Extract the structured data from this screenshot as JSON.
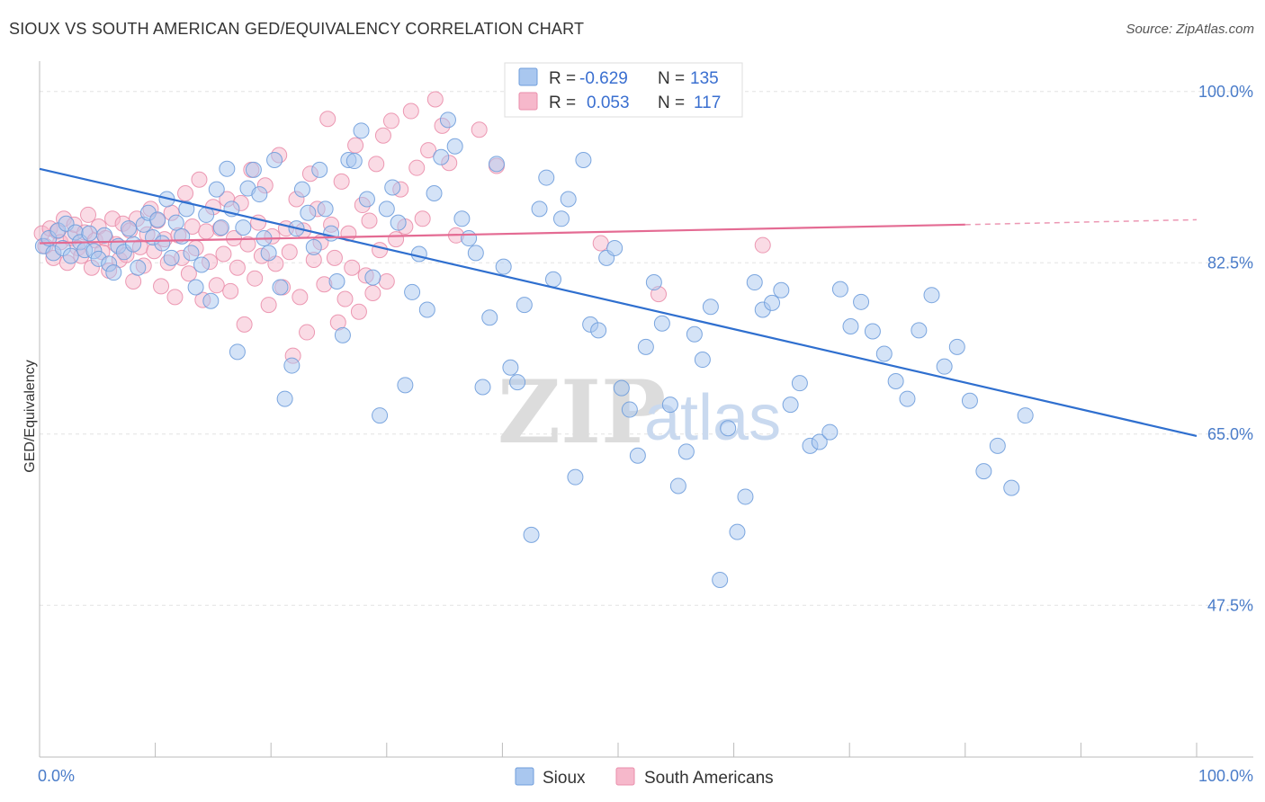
{
  "title": "SIOUX VS SOUTH AMERICAN GED/EQUIVALENCY CORRELATION CHART",
  "source": "Source: ZipAtlas.com",
  "watermark": {
    "zip": "ZIP",
    "atlas": "atlas"
  },
  "colors": {
    "sioux_fill": "#a9c7ef",
    "sioux_stroke": "#6f9ddb",
    "sioux_line": "#2f6fcf",
    "sa_fill": "#f6b8cb",
    "sa_stroke": "#ea8eab",
    "sa_line": "#e46b93",
    "axis_text": "#4a7cc9",
    "grid": "#e3e3e3"
  },
  "legend_box": {
    "rows": [
      {
        "r_label": "R =",
        "r_value": "-0.629",
        "n_label": "N =",
        "n_value": "135"
      },
      {
        "r_label": "R =",
        "r_value": "0.053",
        "n_label": "N =",
        "n_value": "117"
      }
    ]
  },
  "bottom_legend": {
    "sioux": "Sioux",
    "south_americans": "South Americans"
  },
  "chart_data": {
    "type": "scatter",
    "title": "SIOUX VS SOUTH AMERICAN GED/EQUIVALENCY CORRELATION CHART",
    "xlabel": "",
    "ylabel": "GED/Equivalency",
    "xlim": [
      0,
      100
    ],
    "ylim": [
      32,
      102
    ],
    "x_tick_labels": [
      "0.0%",
      "100.0%"
    ],
    "y_ticks": [
      100.0,
      82.5,
      65.0,
      47.5
    ],
    "y_tick_labels": [
      "100.0%",
      "82.5%",
      "65.0%",
      "47.5%"
    ],
    "grid": true,
    "legend_position": "top-center",
    "series": [
      {
        "name": "Sioux",
        "r": -0.629,
        "n": 135,
        "trend": {
          "x": [
            0,
            100
          ],
          "y": [
            92.1,
            64.8
          ],
          "dashed_from": null
        },
        "points": [
          [
            0.3,
            84.2
          ],
          [
            0.8,
            85.0
          ],
          [
            1.2,
            83.5
          ],
          [
            1.6,
            85.8
          ],
          [
            2.0,
            84.0
          ],
          [
            2.3,
            86.5
          ],
          [
            2.7,
            83.2
          ],
          [
            3.1,
            85.6
          ],
          [
            3.5,
            84.6
          ],
          [
            3.9,
            83.8
          ],
          [
            4.3,
            85.5
          ],
          [
            4.7,
            83.7
          ],
          [
            5.1,
            82.9
          ],
          [
            5.6,
            85.3
          ],
          [
            6.0,
            82.4
          ],
          [
            6.4,
            81.5
          ],
          [
            6.8,
            84.2
          ],
          [
            7.3,
            83.6
          ],
          [
            7.7,
            86.0
          ],
          [
            8.1,
            84.4
          ],
          [
            8.5,
            82.0
          ],
          [
            9.0,
            86.4
          ],
          [
            9.4,
            87.6
          ],
          [
            9.8,
            85.1
          ],
          [
            10.2,
            86.9
          ],
          [
            10.6,
            84.5
          ],
          [
            11.0,
            89.0
          ],
          [
            11.4,
            83.0
          ],
          [
            11.8,
            86.6
          ],
          [
            12.3,
            85.2
          ],
          [
            12.7,
            88.0
          ],
          [
            13.1,
            83.5
          ],
          [
            13.5,
            80.0
          ],
          [
            14.0,
            82.3
          ],
          [
            14.4,
            87.4
          ],
          [
            14.8,
            78.6
          ],
          [
            15.3,
            90.0
          ],
          [
            15.7,
            86.1
          ],
          [
            16.2,
            92.1
          ],
          [
            16.6,
            88.0
          ],
          [
            17.1,
            73.4
          ],
          [
            17.6,
            86.1
          ],
          [
            18.0,
            90.1
          ],
          [
            18.5,
            92.0
          ],
          [
            19.0,
            89.5
          ],
          [
            19.4,
            85.0
          ],
          [
            19.8,
            83.5
          ],
          [
            20.3,
            93.0
          ],
          [
            20.8,
            80.0
          ],
          [
            21.2,
            68.6
          ],
          [
            21.8,
            72.0
          ],
          [
            22.2,
            86.0
          ],
          [
            22.7,
            90.0
          ],
          [
            23.2,
            87.6
          ],
          [
            23.7,
            84.1
          ],
          [
            24.2,
            92.0
          ],
          [
            24.7,
            88.0
          ],
          [
            25.2,
            85.5
          ],
          [
            25.7,
            80.6
          ],
          [
            26.2,
            75.1
          ],
          [
            26.7,
            93.0
          ],
          [
            27.2,
            92.9
          ],
          [
            27.8,
            96.0
          ],
          [
            28.3,
            89.0
          ],
          [
            28.8,
            81.0
          ],
          [
            29.4,
            66.9
          ],
          [
            30.0,
            88.0
          ],
          [
            30.5,
            90.2
          ],
          [
            31.0,
            86.6
          ],
          [
            31.6,
            70.0
          ],
          [
            32.2,
            79.5
          ],
          [
            32.8,
            83.4
          ],
          [
            33.5,
            77.7
          ],
          [
            34.1,
            89.6
          ],
          [
            34.7,
            93.3
          ],
          [
            35.3,
            97.1
          ],
          [
            35.9,
            94.4
          ],
          [
            36.5,
            87.0
          ],
          [
            37.1,
            85.0
          ],
          [
            37.7,
            83.5
          ],
          [
            38.3,
            69.8
          ],
          [
            38.9,
            76.9
          ],
          [
            39.5,
            92.6
          ],
          [
            40.1,
            82.1
          ],
          [
            40.7,
            71.8
          ],
          [
            41.3,
            70.3
          ],
          [
            41.9,
            78.2
          ],
          [
            42.5,
            54.7
          ],
          [
            43.2,
            88.0
          ],
          [
            43.8,
            91.2
          ],
          [
            44.4,
            80.8
          ],
          [
            45.1,
            87.0
          ],
          [
            45.7,
            89.0
          ],
          [
            46.3,
            60.6
          ],
          [
            47.0,
            93.0
          ],
          [
            47.6,
            76.2
          ],
          [
            48.3,
            75.6
          ],
          [
            49.0,
            83.0
          ],
          [
            49.7,
            84.0
          ],
          [
            50.3,
            69.7
          ],
          [
            51.0,
            67.5
          ],
          [
            51.7,
            62.8
          ],
          [
            52.4,
            73.9
          ],
          [
            53.1,
            80.5
          ],
          [
            53.8,
            76.3
          ],
          [
            54.5,
            68.0
          ],
          [
            55.2,
            59.7
          ],
          [
            55.9,
            63.2
          ],
          [
            56.6,
            75.2
          ],
          [
            57.3,
            72.6
          ],
          [
            58.0,
            78.0
          ],
          [
            58.8,
            50.1
          ],
          [
            59.5,
            65.6
          ],
          [
            60.3,
            55.0
          ],
          [
            61.0,
            58.6
          ],
          [
            61.8,
            80.5
          ],
          [
            62.5,
            77.7
          ],
          [
            63.3,
            78.4
          ],
          [
            64.1,
            79.7
          ],
          [
            64.9,
            68.0
          ],
          [
            65.7,
            70.2
          ],
          [
            66.6,
            63.8
          ],
          [
            67.4,
            64.2
          ],
          [
            68.3,
            65.2
          ],
          [
            69.2,
            79.8
          ],
          [
            70.1,
            76.0
          ],
          [
            71.0,
            78.5
          ],
          [
            72.0,
            75.5
          ],
          [
            73.0,
            73.2
          ],
          [
            74.0,
            70.4
          ],
          [
            75.0,
            68.6
          ],
          [
            76.0,
            75.6
          ],
          [
            77.1,
            79.2
          ],
          [
            78.2,
            71.9
          ],
          [
            79.3,
            73.9
          ],
          [
            80.4,
            68.4
          ],
          [
            81.6,
            61.2
          ],
          [
            82.8,
            63.8
          ],
          [
            84.0,
            59.5
          ],
          [
            85.2,
            66.9
          ]
        ]
      },
      {
        "name": "South Americans",
        "r": 0.053,
        "n": 117,
        "trend": {
          "x": [
            0,
            80,
            100
          ],
          "y": [
            84.5,
            86.4,
            86.9
          ],
          "dashed_from": 80
        },
        "points": [
          [
            0.2,
            85.5
          ],
          [
            0.5,
            84.2
          ],
          [
            0.9,
            86.0
          ],
          [
            1.2,
            83.0
          ],
          [
            1.5,
            85.7
          ],
          [
            1.8,
            84.6
          ],
          [
            2.1,
            87.0
          ],
          [
            2.4,
            82.5
          ],
          [
            2.7,
            85.0
          ],
          [
            3.0,
            86.4
          ],
          [
            3.3,
            84.0
          ],
          [
            3.6,
            83.2
          ],
          [
            3.9,
            85.6
          ],
          [
            4.2,
            87.4
          ],
          [
            4.5,
            82.0
          ],
          [
            4.8,
            84.8
          ],
          [
            5.1,
            86.2
          ],
          [
            5.4,
            83.6
          ],
          [
            5.7,
            85.0
          ],
          [
            6.0,
            81.7
          ],
          [
            6.3,
            87.0
          ],
          [
            6.6,
            84.4
          ],
          [
            6.9,
            82.8
          ],
          [
            7.2,
            86.5
          ],
          [
            7.5,
            83.3
          ],
          [
            7.8,
            85.8
          ],
          [
            8.1,
            80.6
          ],
          [
            8.4,
            87.0
          ],
          [
            8.7,
            84.1
          ],
          [
            9.0,
            82.2
          ],
          [
            9.3,
            85.4
          ],
          [
            9.6,
            88.0
          ],
          [
            9.9,
            83.7
          ],
          [
            10.2,
            86.8
          ],
          [
            10.5,
            80.1
          ],
          [
            10.8,
            84.9
          ],
          [
            11.1,
            82.5
          ],
          [
            11.4,
            87.6
          ],
          [
            11.7,
            79.0
          ],
          [
            12.0,
            85.3
          ],
          [
            12.3,
            83.0
          ],
          [
            12.6,
            89.6
          ],
          [
            12.9,
            81.4
          ],
          [
            13.2,
            86.2
          ],
          [
            13.5,
            84.0
          ],
          [
            13.8,
            91.0
          ],
          [
            14.1,
            78.7
          ],
          [
            14.4,
            85.7
          ],
          [
            14.7,
            82.6
          ],
          [
            15.0,
            88.2
          ],
          [
            15.3,
            80.2
          ],
          [
            15.6,
            86.0
          ],
          [
            15.9,
            83.4
          ],
          [
            16.2,
            89.0
          ],
          [
            16.5,
            79.6
          ],
          [
            16.8,
            85.0
          ],
          [
            17.1,
            82.0
          ],
          [
            17.4,
            88.6
          ],
          [
            17.7,
            76.2
          ],
          [
            18.0,
            84.4
          ],
          [
            18.3,
            92.0
          ],
          [
            18.6,
            80.9
          ],
          [
            18.9,
            86.6
          ],
          [
            19.2,
            83.2
          ],
          [
            19.5,
            90.4
          ],
          [
            19.8,
            78.2
          ],
          [
            20.1,
            85.2
          ],
          [
            20.4,
            82.4
          ],
          [
            20.7,
            93.5
          ],
          [
            21.0,
            80.0
          ],
          [
            21.3,
            86.0
          ],
          [
            21.6,
            83.6
          ],
          [
            21.9,
            73.0
          ],
          [
            22.2,
            89.0
          ],
          [
            22.5,
            79.0
          ],
          [
            22.8,
            85.8
          ],
          [
            23.1,
            75.4
          ],
          [
            23.4,
            91.6
          ],
          [
            23.7,
            82.8
          ],
          [
            24.0,
            88.0
          ],
          [
            24.3,
            84.6
          ],
          [
            24.6,
            80.3
          ],
          [
            24.9,
            97.2
          ],
          [
            25.2,
            86.4
          ],
          [
            25.5,
            83.0
          ],
          [
            25.8,
            76.4
          ],
          [
            26.1,
            90.8
          ],
          [
            26.4,
            78.8
          ],
          [
            26.7,
            85.5
          ],
          [
            27.0,
            82.0
          ],
          [
            27.3,
            94.5
          ],
          [
            27.6,
            77.5
          ],
          [
            27.9,
            88.4
          ],
          [
            28.2,
            81.2
          ],
          [
            28.5,
            86.8
          ],
          [
            28.8,
            79.4
          ],
          [
            29.1,
            92.6
          ],
          [
            29.4,
            83.8
          ],
          [
            29.7,
            95.5
          ],
          [
            30.0,
            80.6
          ],
          [
            30.4,
            97.0
          ],
          [
            30.8,
            84.9
          ],
          [
            31.2,
            90.0
          ],
          [
            31.6,
            86.2
          ],
          [
            32.1,
            98.0
          ],
          [
            32.6,
            92.2
          ],
          [
            33.1,
            87.0
          ],
          [
            33.6,
            94.0
          ],
          [
            34.2,
            99.2
          ],
          [
            34.8,
            96.5
          ],
          [
            35.4,
            92.7
          ],
          [
            36.0,
            85.3
          ],
          [
            38.0,
            96.1
          ],
          [
            39.5,
            92.4
          ],
          [
            48.5,
            84.5
          ],
          [
            53.5,
            79.3
          ],
          [
            62.5,
            84.3
          ]
        ]
      }
    ]
  }
}
